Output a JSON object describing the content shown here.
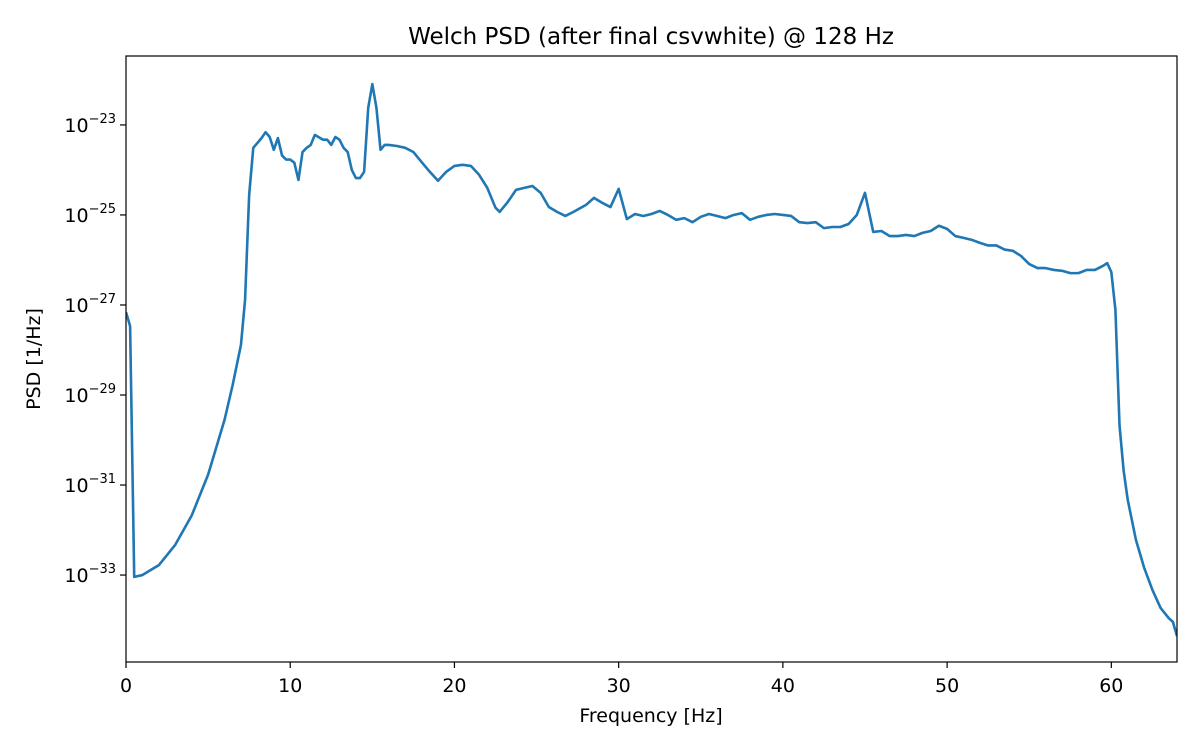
{
  "chart_data": {
    "type": "line",
    "title": "Welch PSD (after final csvwhite) @ 128 Hz",
    "x_label": "Frequency [Hz]",
    "y_label": "PSD [1/Hz]",
    "yscale": "log",
    "color": "#1f77b4",
    "xlim": [
      0,
      64
    ],
    "xticks": [
      0,
      10,
      20,
      30,
      40,
      50,
      60
    ],
    "ylim": [
      1.17e-35,
      3.4e-22
    ],
    "yticks": [
      {
        "value": 1e-23,
        "label": {
          "base": "10",
          "exponent": "−23"
        }
      },
      {
        "value": 1e-25,
        "label": {
          "base": "10",
          "exponent": "−25"
        }
      },
      {
        "value": 1e-27,
        "label": {
          "base": "10",
          "exponent": "−27"
        }
      },
      {
        "value": 1e-29,
        "label": {
          "base": "10",
          "exponent": "−29"
        }
      },
      {
        "value": 1e-31,
        "label": {
          "base": "10",
          "exponent": "−31"
        }
      },
      {
        "value": 1e-33,
        "label": {
          "base": "10",
          "exponent": "−33"
        }
      }
    ],
    "x": [
      0,
      0.25,
      0.5,
      1,
      2,
      3,
      4,
      5,
      6,
      6.5,
      7,
      7.25,
      7.5,
      7.75,
      8.25,
      8.5,
      8.75,
      9,
      9.25,
      9.5,
      9.75,
      10,
      10.25,
      10.5,
      10.75,
      11,
      11.25,
      11.5,
      12,
      12.25,
      12.5,
      12.75,
      13,
      13.25,
      13.5,
      13.75,
      14,
      14.25,
      14.5,
      14.75,
      15,
      15.25,
      15.5,
      15.75,
      16,
      16.5,
      17,
      17.5,
      18,
      18.5,
      19,
      19.5,
      20,
      20.5,
      21,
      21.5,
      22,
      22.5,
      22.75,
      23.25,
      23.75,
      24.25,
      24.75,
      25.25,
      25.75,
      26.25,
      26.75,
      27.25,
      28,
      28.5,
      29,
      29.5,
      30,
      30.5,
      31,
      31.5,
      32,
      32.5,
      33,
      33.5,
      34,
      34.5,
      35,
      35.5,
      36,
      36.5,
      37,
      37.5,
      38,
      38.5,
      39,
      39.5,
      40,
      40.5,
      41,
      41.5,
      42,
      42.5,
      43,
      43.5,
      44,
      44.5,
      45,
      45.5,
      46,
      46.5,
      47,
      47.5,
      48,
      48.5,
      49,
      49.5,
      50,
      50.5,
      51,
      51.5,
      52,
      52.5,
      53,
      53.5,
      54,
      54.5,
      55,
      55.5,
      56,
      56.5,
      57,
      57.5,
      58,
      58.5,
      59,
      59.5,
      59.75,
      60,
      60.25,
      60.5,
      60.75,
      61,
      61.5,
      62,
      62.5,
      63,
      63.5,
      63.75,
      64
    ],
    "values": [
      6.9e-28,
      3.4e-28,
      9.1e-34,
      1e-33,
      1.66e-33,
      4.7e-33,
      2.1e-32,
      1.7e-31,
      2.8e-30,
      1.7e-29,
      1.3e-28,
      1.3e-27,
      2.8e-25,
      3.1e-24,
      5.1e-24,
      6.9e-24,
      5.4e-24,
      2.8e-24,
      5.1e-24,
      2.1e-24,
      1.7e-24,
      1.7e-24,
      1.45e-24,
      6e-25,
      2.5e-24,
      3.1e-24,
      3.6e-24,
      6e-24,
      4.7e-24,
      4.7e-24,
      3.6e-24,
      5.4e-24,
      4.7e-24,
      3.1e-24,
      2.5e-24,
      1e-24,
      6.6e-25,
      6.6e-25,
      9.1e-25,
      2.4e-23,
      8.1e-23,
      2.4e-23,
      2.8e-24,
      3.6e-24,
      3.6e-24,
      3.4e-24,
      3.1e-24,
      2.5e-24,
      1.5e-24,
      9.1e-25,
      5.75e-25,
      9.1e-25,
      1.23e-24,
      1.3e-24,
      1.23e-24,
      7.8e-25,
      4e-25,
      1.45e-25,
      1.17e-25,
      1.95e-25,
      3.6e-25,
      4e-25,
      4.4e-25,
      3.1e-25,
      1.5e-25,
      1.17e-25,
      9.5e-26,
      1.17e-25,
      1.66e-25,
      2.4e-25,
      1.86e-25,
      1.5e-25,
      3.8e-25,
      8.1e-26,
      1.05e-25,
      9.5e-26,
      1.05e-25,
      1.23e-25,
      1e-25,
      7.8e-26,
      8.5e-26,
      6.9e-26,
      9.1e-26,
      1.05e-25,
      9.5e-26,
      8.5e-26,
      1e-25,
      1.1e-25,
      7.8e-26,
      9.1e-26,
      1e-25,
      1.05e-25,
      1e-25,
      9.5e-26,
      6.9e-26,
      6.6e-26,
      6.9e-26,
      5.1e-26,
      5.4e-26,
      5.4e-26,
      6.3e-26,
      1e-25,
      3.1e-25,
      4.2e-26,
      4.4e-26,
      3.4e-26,
      3.4e-26,
      3.6e-26,
      3.4e-26,
      4e-26,
      4.4e-26,
      5.75e-26,
      4.9e-26,
      3.4e-26,
      3.1e-26,
      2.8e-26,
      2.4e-26,
      2.1e-26,
      2.1e-26,
      1.7e-26,
      1.6e-26,
      1.23e-26,
      8.1e-27,
      6.6e-27,
      6.6e-27,
      6e-27,
      5.75e-27,
      5.1e-27,
      5.1e-27,
      6e-27,
      6e-27,
      7.4e-27,
      8.5e-27,
      5.4e-27,
      7.8e-28,
      2.1e-30,
      2.1e-31,
      4.7e-32,
      6e-33,
      1.45e-33,
      4.7e-34,
      1.86e-34,
      1.1e-34,
      9.1e-35,
      4.4e-35
    ]
  }
}
